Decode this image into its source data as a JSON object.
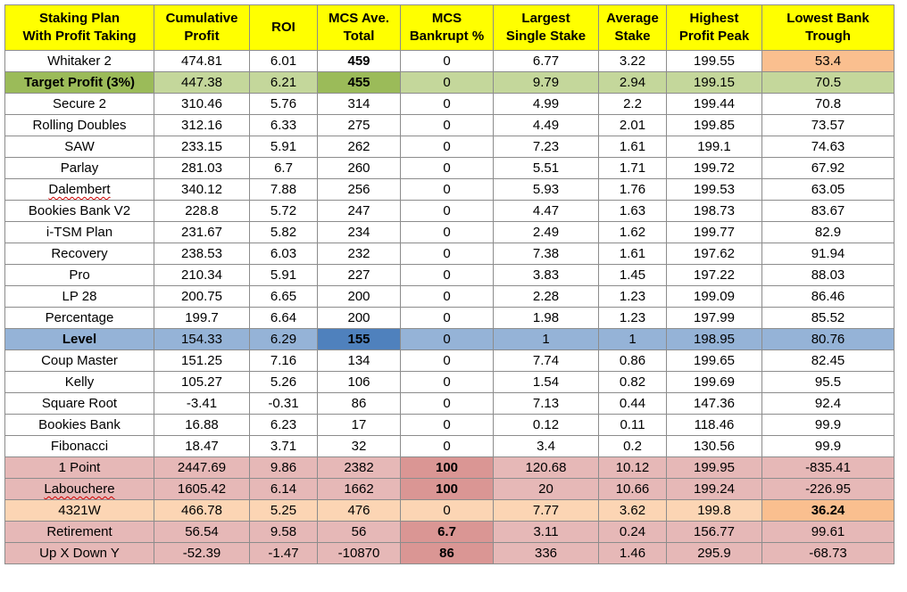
{
  "headers": [
    [
      "Staking Plan",
      "With Profit Taking"
    ],
    [
      "Cumulative",
      "Profit"
    ],
    [
      "ROI"
    ],
    [
      "MCS Ave.",
      "Total"
    ],
    [
      "MCS",
      "Bankrupt %"
    ],
    [
      "Largest",
      "Single Stake"
    ],
    [
      "Average",
      "Stake"
    ],
    [
      "Highest",
      "Profit Peak"
    ],
    [
      "Lowest Bank",
      "Trough"
    ]
  ],
  "rows": [
    {
      "cells": [
        "Whitaker 2",
        "474.81",
        "6.01",
        "459",
        "0",
        "6.77",
        "3.22",
        "199.55",
        "53.4"
      ],
      "style": "",
      "bold_cols": [
        3
      ],
      "hl": {
        "8": "hl-peach"
      }
    },
    {
      "cells": [
        "Target Profit (3%)",
        "447.38",
        "6.21",
        "455",
        "0",
        "9.79",
        "2.94",
        "199.15",
        "70.5"
      ],
      "style": "r-green r-bold",
      "bold_cols": [],
      "hl": {
        "0": "hl-green",
        "3": "hl-green"
      }
    },
    {
      "cells": [
        "Secure 2",
        "310.46",
        "5.76",
        "314",
        "0",
        "4.99",
        "2.2",
        "199.44",
        "70.8"
      ],
      "style": "",
      "bold_cols": [],
      "hl": {}
    },
    {
      "cells": [
        "Rolling Doubles",
        "312.16",
        "6.33",
        "275",
        "0",
        "4.49",
        "2.01",
        "199.85",
        "73.57"
      ],
      "style": "",
      "bold_cols": [],
      "hl": {}
    },
    {
      "cells": [
        "SAW",
        "233.15",
        "5.91",
        "262",
        "0",
        "7.23",
        "1.61",
        "199.1",
        "74.63"
      ],
      "style": "",
      "bold_cols": [],
      "hl": {}
    },
    {
      "cells": [
        "Parlay",
        "281.03",
        "6.7",
        "260",
        "0",
        "5.51",
        "1.71",
        "199.72",
        "67.92"
      ],
      "style": "",
      "bold_cols": [],
      "hl": {}
    },
    {
      "cells": [
        "Dalembert",
        "340.12",
        "7.88",
        "256",
        "0",
        "5.93",
        "1.76",
        "199.53",
        "63.05"
      ],
      "style": "",
      "bold_cols": [],
      "hl": {},
      "squiggle": true
    },
    {
      "cells": [
        "Bookies Bank V2",
        "228.8",
        "5.72",
        "247",
        "0",
        "4.47",
        "1.63",
        "198.73",
        "83.67"
      ],
      "style": "",
      "bold_cols": [],
      "hl": {}
    },
    {
      "cells": [
        "i-TSM Plan",
        "231.67",
        "5.82",
        "234",
        "0",
        "2.49",
        "1.62",
        "199.77",
        "82.9"
      ],
      "style": "",
      "bold_cols": [],
      "hl": {}
    },
    {
      "cells": [
        "Recovery",
        "238.53",
        "6.03",
        "232",
        "0",
        "7.38",
        "1.61",
        "197.62",
        "91.94"
      ],
      "style": "",
      "bold_cols": [],
      "hl": {}
    },
    {
      "cells": [
        "Pro",
        "210.34",
        "5.91",
        "227",
        "0",
        "3.83",
        "1.45",
        "197.22",
        "88.03"
      ],
      "style": "",
      "bold_cols": [],
      "hl": {}
    },
    {
      "cells": [
        "LP 28",
        "200.75",
        "6.65",
        "200",
        "0",
        "2.28",
        "1.23",
        "199.09",
        "86.46"
      ],
      "style": "",
      "bold_cols": [],
      "hl": {}
    },
    {
      "cells": [
        "Percentage",
        "199.7",
        "6.64",
        "200",
        "0",
        "1.98",
        "1.23",
        "197.99",
        "85.52"
      ],
      "style": "",
      "bold_cols": [],
      "hl": {}
    },
    {
      "cells": [
        "Level",
        "154.33",
        "6.29",
        "155",
        "0",
        "1",
        "1",
        "198.95",
        "80.76"
      ],
      "style": "r-blue r-bold",
      "bold_cols": [],
      "hl": {
        "3": "hl-blue"
      }
    },
    {
      "cells": [
        "Coup Master",
        "151.25",
        "7.16",
        "134",
        "0",
        "7.74",
        "0.86",
        "199.65",
        "82.45"
      ],
      "style": "",
      "bold_cols": [],
      "hl": {}
    },
    {
      "cells": [
        "Kelly",
        "105.27",
        "5.26",
        "106",
        "0",
        "1.54",
        "0.82",
        "199.69",
        "95.5"
      ],
      "style": "",
      "bold_cols": [],
      "hl": {}
    },
    {
      "cells": [
        "Square Root",
        "-3.41",
        "-0.31",
        "86",
        "0",
        "7.13",
        "0.44",
        "147.36",
        "92.4"
      ],
      "style": "",
      "bold_cols": [],
      "hl": {}
    },
    {
      "cells": [
        "Bookies Bank",
        "16.88",
        "6.23",
        "17",
        "0",
        "0.12",
        "0.11",
        "118.46",
        "99.9"
      ],
      "style": "",
      "bold_cols": [],
      "hl": {}
    },
    {
      "cells": [
        "Fibonacci",
        "18.47",
        "3.71",
        "32",
        "0",
        "3.4",
        "0.2",
        "130.56",
        "99.9"
      ],
      "style": "",
      "bold_cols": [],
      "hl": {}
    },
    {
      "cells": [
        "1 Point",
        "2447.69",
        "9.86",
        "2382",
        "100",
        "120.68",
        "10.12",
        "199.95",
        "-835.41"
      ],
      "style": "r-pink",
      "bold_cols": [],
      "hl": {
        "4": "hl-red"
      }
    },
    {
      "cells": [
        "Labouchere",
        "1605.42",
        "6.14",
        "1662",
        "100",
        "20",
        "10.66",
        "199.24",
        "-226.95"
      ],
      "style": "r-pink",
      "bold_cols": [],
      "hl": {
        "4": "hl-red"
      },
      "squiggle": true
    },
    {
      "cells": [
        "4321W",
        "466.78",
        "5.25",
        "476",
        "0",
        "7.77",
        "3.62",
        "199.8",
        "36.24"
      ],
      "style": "r-peach",
      "bold_cols": [],
      "hl": {
        "8": "hl-peach bold"
      }
    },
    {
      "cells": [
        "Retirement",
        "56.54",
        "9.58",
        "56",
        "6.7",
        "3.11",
        "0.24",
        "156.77",
        "99.61"
      ],
      "style": "r-pink",
      "bold_cols": [],
      "hl": {
        "4": "hl-red"
      }
    },
    {
      "cells": [
        "Up X Down Y",
        "-52.39",
        "-1.47",
        "-10870",
        "86",
        "336",
        "1.46",
        "295.9",
        "-68.73"
      ],
      "style": "r-pink",
      "bold_cols": [],
      "hl": {
        "4": "hl-red"
      }
    }
  ]
}
